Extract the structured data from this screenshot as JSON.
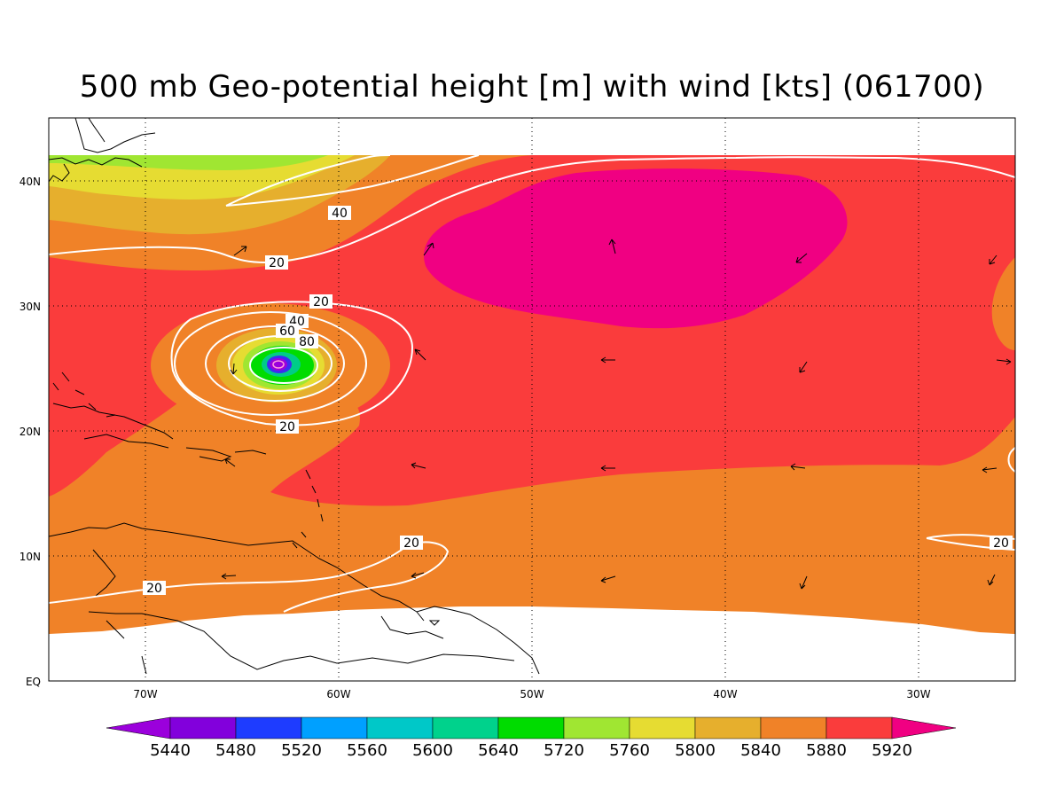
{
  "title": "500 mb Geo-potential height [m] with wind [kts] (061700)",
  "map": {
    "type": "filled-contour map with wind contours and vectors",
    "lon_range": [
      -75,
      -25
    ],
    "lat_range": [
      0,
      45
    ],
    "grid": "dotted",
    "x_ticks": [
      "70W",
      "60W",
      "50W",
      "40W",
      "30W"
    ],
    "y_ticks": [
      "EQ",
      "10N",
      "20N",
      "30N",
      "40N"
    ],
    "fill_colors": {
      "c5440": "#9b00dc",
      "c5480": "#3d2cf0",
      "c5600": "#00cc88",
      "c5640": "#00dc00",
      "c5720": "#a0e632",
      "c5760": "#e6dc32",
      "c5800": "#e6af2d",
      "c5840": "#f08228",
      "c5880": "#fa3c3c",
      "c5920": "#f00082",
      "land_border": "#000000",
      "wind_contour": "#ffffff"
    },
    "wind_contour_labels": [
      "40",
      "20",
      "20",
      "40",
      "60",
      "80",
      "20",
      "20",
      "20",
      "20"
    ]
  },
  "colorbar": {
    "labels": [
      "5440",
      "5480",
      "5520",
      "5560",
      "5600",
      "5640",
      "5720",
      "5760",
      "5800",
      "5840",
      "5880",
      "5920"
    ],
    "colors": [
      "#9b00dc",
      "#8200dc",
      "#1e3cff",
      "#00a0ff",
      "#00c8c8",
      "#00d28c",
      "#00dc00",
      "#a0e632",
      "#e6dc32",
      "#e6af2d",
      "#f08228",
      "#fa3c3c",
      "#f00082"
    ]
  }
}
